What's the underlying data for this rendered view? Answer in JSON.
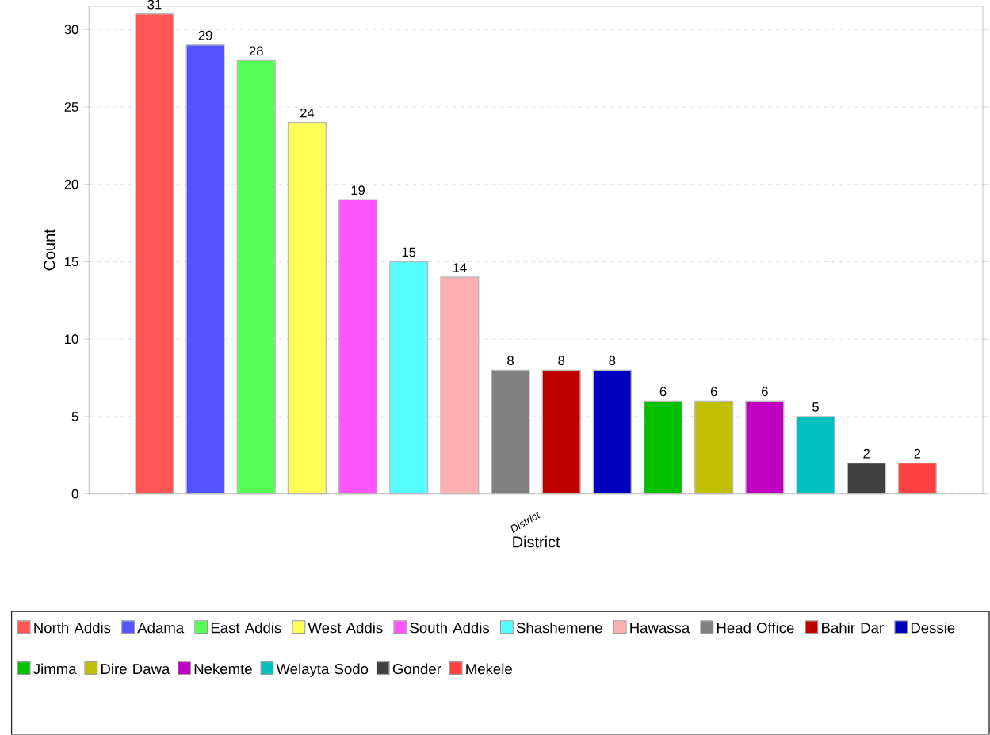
{
  "chart_data": {
    "type": "bar",
    "xlabel": "District",
    "ylabel": "Count",
    "categories": [
      "District"
    ],
    "series": [
      {
        "name": "North Addis",
        "color": "#ff5555",
        "values": [
          31
        ]
      },
      {
        "name": "Adama",
        "color": "#5555ff",
        "values": [
          29
        ]
      },
      {
        "name": "East Addis",
        "color": "#55ff55",
        "values": [
          28
        ]
      },
      {
        "name": "West Addis",
        "color": "#ffff55",
        "values": [
          24
        ]
      },
      {
        "name": "South Addis",
        "color": "#ff55ff",
        "values": [
          19
        ]
      },
      {
        "name": "Shashemene",
        "color": "#55ffff",
        "values": [
          15
        ]
      },
      {
        "name": "Hawassa",
        "color": "#ffafaf",
        "values": [
          14
        ]
      },
      {
        "name": "Head Office",
        "color": "#808080",
        "values": [
          8
        ]
      },
      {
        "name": "Bahir Dar",
        "color": "#c00000",
        "values": [
          8
        ]
      },
      {
        "name": "Dessie",
        "color": "#0000c0",
        "values": [
          8
        ]
      },
      {
        "name": "Jimma",
        "color": "#00c000",
        "values": [
          6
        ]
      },
      {
        "name": "Dire Dawa",
        "color": "#c0c000",
        "values": [
          6
        ]
      },
      {
        "name": "Nekemte",
        "color": "#c000c0",
        "values": [
          6
        ]
      },
      {
        "name": "Welayta Sodo",
        "color": "#00c0c0",
        "values": [
          5
        ]
      },
      {
        "name": "Gonder",
        "color": "#404040",
        "values": [
          2
        ]
      },
      {
        "name": "Mekele",
        "color": "#ff4040",
        "values": [
          2
        ]
      }
    ],
    "ylim": [
      0,
      31.5
    ],
    "yticks": [
      0,
      5,
      10,
      15,
      20,
      25,
      30
    ],
    "grid": "y",
    "legend": "bottom",
    "data_labels": true
  }
}
